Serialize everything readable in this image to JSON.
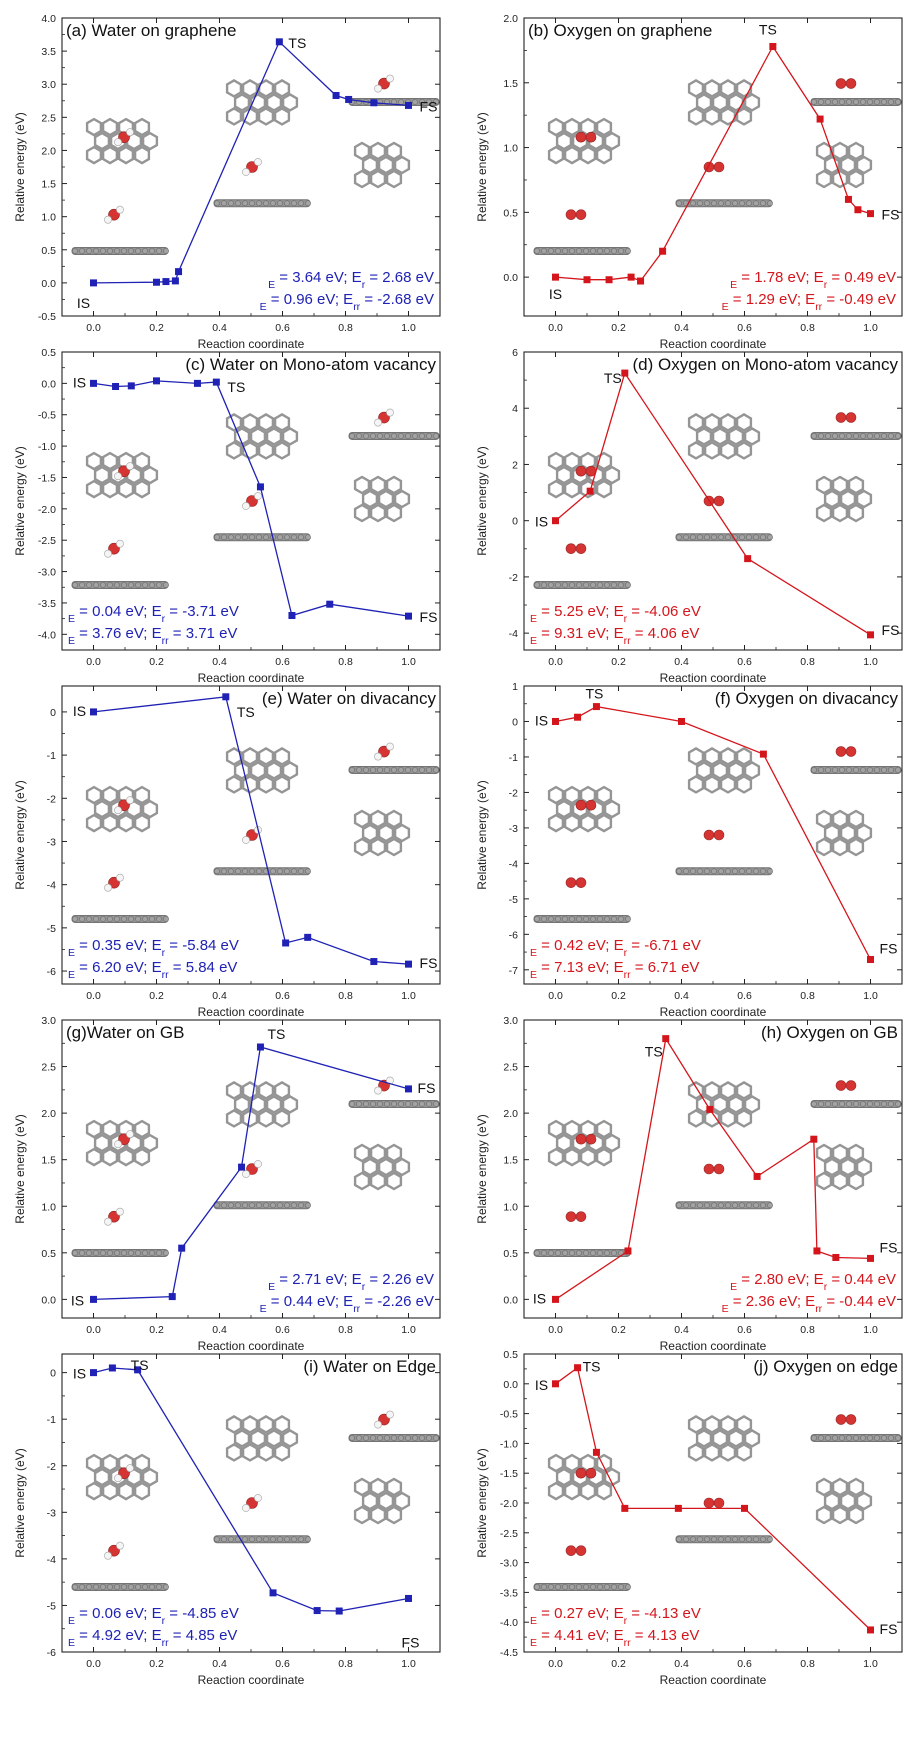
{
  "chart_data": [
    {
      "type": "line",
      "panel_label": "(a) Water on graphene",
      "color": "#1f22b4",
      "xlabel": "Reaction coordinate",
      "ylabel": "Relative energy (eV)",
      "xlim": [
        -0.1,
        1.1
      ],
      "ylim": [
        -0.5,
        4.0
      ],
      "yticks": [
        -0.5,
        0.0,
        0.5,
        1.0,
        1.5,
        2.0,
        2.5,
        3.0,
        3.5,
        4.0
      ],
      "ytick_labels": [
        "-0.5",
        "0.0",
        "0.5",
        "1.0",
        "1.5",
        "2.0",
        "2.5",
        "3.0",
        "3.5",
        "4.0"
      ],
      "x": [
        0.0,
        0.2,
        0.23,
        0.26,
        0.27,
        0.59,
        0.77,
        0.81,
        0.89,
        1.0
      ],
      "y": [
        0.0,
        0.01,
        0.02,
        0.03,
        0.17,
        3.64,
        2.83,
        2.77,
        2.72,
        2.68
      ],
      "labels": [
        {
          "text": "IS",
          "x": 0.0,
          "y": 0.0,
          "dx": -10,
          "dy": 25
        },
        {
          "text": "TS",
          "x": 0.59,
          "y": 3.64,
          "dx": 18,
          "dy": 6
        },
        {
          "text": "FS",
          "x": 1.0,
          "y": 2.68,
          "dx": 20,
          "dy": 6
        }
      ],
      "energy_lines": [
        [
          {
            "t": "E",
            "s": "bar"
          },
          {
            "t": " = 3.64 eV; E"
          },
          {
            "t": "r",
            "s": "r"
          },
          {
            "t": "  = 2.68 eV"
          }
        ],
        [
          {
            "t": "E",
            "s": "rbar"
          },
          {
            "t": " = 0.96 eV; E"
          },
          {
            "t": "rr",
            "s": "rr"
          },
          {
            "t": " = -2.68 eV"
          }
        ]
      ]
    },
    {
      "type": "line",
      "panel_label": "(b) Oxygen on graphene",
      "color": "#d4161c",
      "xlabel": "Reaction coordinate",
      "ylabel": "Relative energy (eV)",
      "xlim": [
        -0.1,
        1.1
      ],
      "ylim": [
        -0.3,
        2.0
      ],
      "yticks": [
        0.0,
        0.5,
        1.0,
        1.5,
        2.0
      ],
      "ytick_labels": [
        "0.0",
        "0.5",
        "1.0",
        "1.5",
        "2.0"
      ],
      "x": [
        0.0,
        0.1,
        0.17,
        0.24,
        0.27,
        0.34,
        0.69,
        0.84,
        0.93,
        0.96,
        1.0
      ],
      "y": [
        0.0,
        -0.02,
        -0.02,
        0.0,
        -0.03,
        0.2,
        1.78,
        1.22,
        0.6,
        0.52,
        0.49
      ],
      "labels": [
        {
          "text": "IS",
          "x": 0.0,
          "y": 0.0,
          "dx": 0,
          "dy": 22
        },
        {
          "text": "TS",
          "x": 0.69,
          "y": 1.78,
          "dx": -5,
          "dy": -12
        },
        {
          "text": "FS",
          "x": 1.0,
          "y": 0.49,
          "dx": 20,
          "dy": 6
        }
      ],
      "energy_lines": [
        [
          {
            "t": "E",
            "s": "bar"
          },
          {
            "t": " = 1.78 eV; E"
          },
          {
            "t": "r",
            "s": "r"
          },
          {
            "t": "  = 0.49 eV"
          }
        ],
        [
          {
            "t": "E",
            "s": "rbar"
          },
          {
            "t": " = 1.29 eV; E"
          },
          {
            "t": "rr",
            "s": "rr"
          },
          {
            "t": " = -0.49 eV"
          }
        ]
      ]
    },
    {
      "type": "line",
      "panel_label": "(c) Water on Mono-atom vacancy",
      "color": "#1f22b4",
      "xlabel": "Reaction coordinate",
      "ylabel": "Relative energy (eV)",
      "xlim": [
        -0.1,
        1.1
      ],
      "ylim": [
        -4.25,
        0.5
      ],
      "yticks": [
        -4.0,
        -3.5,
        -3.0,
        -2.5,
        -2.0,
        -1.5,
        -1.0,
        -0.5,
        0.0,
        0.5
      ],
      "ytick_labels": [
        "-4.0",
        "-3.5",
        "-3.0",
        "-2.5",
        "-2.0",
        "-1.5",
        "-1.0",
        "-0.5",
        "0.0",
        "0.5"
      ],
      "x": [
        0.0,
        0.07,
        0.12,
        0.2,
        0.33,
        0.39,
        0.53,
        0.63,
        0.75,
        1.0
      ],
      "y": [
        0.0,
        -0.05,
        -0.04,
        0.04,
        0.0,
        0.02,
        -1.65,
        -3.7,
        -3.52,
        -3.71
      ],
      "labels": [
        {
          "text": "IS",
          "x": 0.0,
          "y": 0.0,
          "dx": -14,
          "dy": 4
        },
        {
          "text": "TS",
          "x": 0.39,
          "y": 0.02,
          "dx": 20,
          "dy": 10
        },
        {
          "text": "FS",
          "x": 1.0,
          "y": -3.71,
          "dx": 20,
          "dy": 6
        }
      ],
      "energy_lines": [
        [
          {
            "t": "E",
            "s": "bar"
          },
          {
            "t": " = 0.04 eV; E"
          },
          {
            "t": "r",
            "s": "r"
          },
          {
            "t": " = -3.71 eV"
          }
        ],
        [
          {
            "t": "E",
            "s": "rbar"
          },
          {
            "t": " = 3.76 eV; E"
          },
          {
            "t": "rr",
            "s": "rr"
          },
          {
            "t": " = 3.71 eV"
          }
        ]
      ]
    },
    {
      "type": "line",
      "panel_label": "(d) Oxygen on Mono-atom vacancy",
      "color": "#d4161c",
      "xlabel": "Reaction coordinate",
      "ylabel": "Relative energy (eV)",
      "xlim": [
        -0.1,
        1.1
      ],
      "ylim": [
        -4.6,
        6.0
      ],
      "yticks": [
        -4,
        -2,
        0,
        2,
        4,
        6
      ],
      "ytick_labels": [
        "-4",
        "-2",
        "0",
        "2",
        "4",
        "6"
      ],
      "x": [
        0.0,
        0.11,
        0.22,
        0.61,
        1.0
      ],
      "y": [
        0.0,
        1.05,
        5.25,
        -1.35,
        -4.06
      ],
      "labels": [
        {
          "text": "IS",
          "x": 0.0,
          "y": 0.0,
          "dx": -14,
          "dy": 6
        },
        {
          "text": "TS",
          "x": 0.22,
          "y": 5.25,
          "dx": -12,
          "dy": 10
        },
        {
          "text": "FS",
          "x": 1.0,
          "y": -4.06,
          "dx": 20,
          "dy": 0
        }
      ],
      "energy_lines": [
        [
          {
            "t": "E",
            "s": "bar"
          },
          {
            "t": " = 5.25 eV; E"
          },
          {
            "t": "r",
            "s": "r"
          },
          {
            "t": " = -4.06 eV"
          }
        ],
        [
          {
            "t": "E",
            "s": "rbar"
          },
          {
            "t": " = 9.31 eV; E"
          },
          {
            "t": "rr",
            "s": "rr"
          },
          {
            "t": " = 4.06 eV"
          }
        ]
      ]
    },
    {
      "type": "line",
      "panel_label": "(e) Water on divacancy",
      "color": "#1f22b4",
      "xlabel": "Reaction coordinate",
      "ylabel": "Relative energy (eV)",
      "xlim": [
        -0.1,
        1.1
      ],
      "ylim": [
        -6.3,
        0.6
      ],
      "yticks": [
        -6,
        -5,
        -4,
        -3,
        -2,
        -1,
        0
      ],
      "ytick_labels": [
        "-6",
        "-5",
        "-4",
        "-3",
        "-2",
        "-1",
        "0"
      ],
      "x": [
        0.0,
        0.42,
        0.61,
        0.68,
        0.89,
        1.0
      ],
      "y": [
        0.0,
        0.35,
        -5.35,
        -5.22,
        -5.78,
        -5.84
      ],
      "labels": [
        {
          "text": "IS",
          "x": 0.0,
          "y": 0.0,
          "dx": -14,
          "dy": 4
        },
        {
          "text": "TS",
          "x": 0.42,
          "y": 0.35,
          "dx": 20,
          "dy": 20
        },
        {
          "text": "FS",
          "x": 1.0,
          "y": -5.84,
          "dx": 20,
          "dy": 4
        }
      ],
      "energy_lines": [
        [
          {
            "t": "E",
            "s": "bar"
          },
          {
            "t": " = 0.35 eV; E"
          },
          {
            "t": "r",
            "s": "r"
          },
          {
            "t": " = -5.84 eV"
          }
        ],
        [
          {
            "t": "E",
            "s": "rbar"
          },
          {
            "t": " = 6.20 eV; E"
          },
          {
            "t": "rr",
            "s": "rr"
          },
          {
            "t": " = 5.84 eV"
          }
        ]
      ]
    },
    {
      "type": "line",
      "panel_label": "(f) Oxygen on divacancy",
      "color": "#d4161c",
      "xlabel": "Reaction coordinate",
      "ylabel": "Relative energy (eV)",
      "xlim": [
        -0.1,
        1.1
      ],
      "ylim": [
        -7.4,
        1.0
      ],
      "yticks": [
        -7,
        -6,
        -5,
        -4,
        -3,
        -2,
        -1,
        0,
        1
      ],
      "ytick_labels": [
        "-7",
        "-6",
        "-5",
        "-4",
        "-3",
        "-2",
        "-1",
        "0",
        "1"
      ],
      "x": [
        0.0,
        0.07,
        0.13,
        0.4,
        0.66,
        1.0
      ],
      "y": [
        0.0,
        0.12,
        0.42,
        0.0,
        -0.92,
        -6.71
      ],
      "labels": [
        {
          "text": "IS",
          "x": 0.0,
          "y": 0.0,
          "dx": -14,
          "dy": 4
        },
        {
          "text": "TS",
          "x": 0.13,
          "y": 0.42,
          "dx": -2,
          "dy": -8
        },
        {
          "text": "FS",
          "x": 1.0,
          "y": -6.71,
          "dx": 18,
          "dy": -6
        }
      ],
      "energy_lines": [
        [
          {
            "t": "E",
            "s": "bar"
          },
          {
            "t": " = 0.42 eV; E"
          },
          {
            "t": "r",
            "s": "r"
          },
          {
            "t": " = -6.71 eV"
          }
        ],
        [
          {
            "t": "E",
            "s": "rbar"
          },
          {
            "t": " = 7.13 eV; E"
          },
          {
            "t": "rr",
            "s": "rr"
          },
          {
            "t": " = 6.71 eV"
          }
        ]
      ]
    },
    {
      "type": "line",
      "panel_label": "(g)Water on GB",
      "color": "#1f22b4",
      "xlabel": "Reaction coordinate",
      "ylabel": "Relative energy (eV)",
      "xlim": [
        -0.1,
        1.1
      ],
      "ylim": [
        -0.2,
        3.0
      ],
      "yticks": [
        0.0,
        0.5,
        1.0,
        1.5,
        2.0,
        2.5,
        3.0
      ],
      "ytick_labels": [
        "0.0",
        "0.5",
        "1.0",
        "1.5",
        "2.0",
        "2.5",
        "3.0"
      ],
      "x": [
        0.0,
        0.25,
        0.28,
        0.47,
        0.53,
        1.0
      ],
      "y": [
        0.0,
        0.03,
        0.55,
        1.42,
        2.71,
        2.26
      ],
      "labels": [
        {
          "text": "IS",
          "x": 0.0,
          "y": 0.0,
          "dx": -16,
          "dy": 6
        },
        {
          "text": "TS",
          "x": 0.53,
          "y": 2.71,
          "dx": 16,
          "dy": -8
        },
        {
          "text": "FS",
          "x": 1.0,
          "y": 2.26,
          "dx": 18,
          "dy": 4
        }
      ],
      "energy_lines": [
        [
          {
            "t": "E",
            "s": "bar"
          },
          {
            "t": " = 2.71 eV; E"
          },
          {
            "t": "r",
            "s": "r"
          },
          {
            "t": " = 2.26 eV"
          }
        ],
        [
          {
            "t": "E",
            "s": "rbar"
          },
          {
            "t": " = 0.44 eV; E"
          },
          {
            "t": "rr",
            "s": "rr"
          },
          {
            "t": " = -2.26 eV"
          }
        ]
      ]
    },
    {
      "type": "line",
      "panel_label": "(h)  Oxygen on GB",
      "color": "#d4161c",
      "xlabel": "Reaction coordinate",
      "ylabel": "Relative energy (eV)",
      "xlim": [
        -0.1,
        1.1
      ],
      "ylim": [
        -0.2,
        3.0
      ],
      "yticks": [
        0.0,
        0.5,
        1.0,
        1.5,
        2.0,
        2.5,
        3.0
      ],
      "ytick_labels": [
        "0.0",
        "0.5",
        "1.0",
        "1.5",
        "2.0",
        "2.5",
        "3.0"
      ],
      "x": [
        0.0,
        0.23,
        0.35,
        0.49,
        0.64,
        0.82,
        0.83,
        0.89,
        1.0
      ],
      "y": [
        0.0,
        0.52,
        2.8,
        2.04,
        1.32,
        1.72,
        0.52,
        0.45,
        0.44
      ],
      "labels": [
        {
          "text": "IS",
          "x": 0.0,
          "y": 0.0,
          "dx": -16,
          "dy": 4
        },
        {
          "text": "TS",
          "x": 0.35,
          "y": 2.8,
          "dx": -12,
          "dy": 18
        },
        {
          "text": "FS",
          "x": 1.0,
          "y": 0.44,
          "dx": 18,
          "dy": -6
        }
      ],
      "energy_lines": [
        [
          {
            "t": "E",
            "s": "bar"
          },
          {
            "t": " = 2.80 eV; E"
          },
          {
            "t": "r",
            "s": "r"
          },
          {
            "t": " = 0.44 eV"
          }
        ],
        [
          {
            "t": "E",
            "s": "rbar"
          },
          {
            "t": " = 2.36 eV; E"
          },
          {
            "t": "rr",
            "s": "rr"
          },
          {
            "t": " = -0.44 eV"
          }
        ]
      ]
    },
    {
      "type": "line",
      "panel_label": "(i) Water on Edge",
      "color": "#1f22b4",
      "xlabel": "Reaction coordinate",
      "ylabel": "Relative energy (eV)",
      "xlim": [
        -0.1,
        1.1
      ],
      "ylim": [
        -6.0,
        0.4
      ],
      "yticks": [
        -6,
        -5,
        -4,
        -3,
        -2,
        -1,
        0
      ],
      "ytick_labels": [
        "-6",
        "-5",
        "-4",
        "-3",
        "-2",
        "-1",
        "0"
      ],
      "x": [
        0.0,
        0.06,
        0.14,
        0.57,
        0.71,
        0.78,
        1.0
      ],
      "y": [
        0.0,
        0.1,
        0.06,
        -4.73,
        -5.11,
        -5.12,
        -4.85
      ],
      "labels": [
        {
          "text": "IS",
          "x": 0.0,
          "y": 0.0,
          "dx": -14,
          "dy": 6
        },
        {
          "text": "TS",
          "x": 0.14,
          "y": 0.06,
          "dx": 2,
          "dy": 0
        },
        {
          "text": "FS",
          "x": 1.0,
          "y": -5.6,
          "dx": 2,
          "dy": 14
        }
      ],
      "energy_lines": [
        [
          {
            "t": "E",
            "s": "bar"
          },
          {
            "t": " = 0.06 eV; E"
          },
          {
            "t": "r",
            "s": "r"
          },
          {
            "t": " = -4.85 eV"
          }
        ],
        [
          {
            "t": "E",
            "s": "rbar"
          },
          {
            "t": " = 4.92 eV; E"
          },
          {
            "t": "rr",
            "s": "rr"
          },
          {
            "t": " = 4.85 eV"
          }
        ]
      ]
    },
    {
      "type": "line",
      "panel_label": "(j)  Oxygen on edge",
      "color": "#d4161c",
      "xlabel": "Reaction coordinate",
      "ylabel": "Relative energy (eV)",
      "xlim": [
        -0.1,
        1.1
      ],
      "ylim": [
        -4.5,
        0.5
      ],
      "yticks": [
        -4.5,
        -4.0,
        -3.5,
        -3.0,
        -2.5,
        -2.0,
        -1.5,
        -1.0,
        -0.5,
        0.0,
        0.5
      ],
      "ytick_labels": [
        "-4.5",
        "-4.0",
        "-3.5",
        "-3.0",
        "-2.5",
        "-2.0",
        "-1.5",
        "-1.0",
        "-0.5",
        "0.0",
        "0.5"
      ],
      "x": [
        0.0,
        0.07,
        0.13,
        0.22,
        0.39,
        0.6,
        1.0
      ],
      "y": [
        0.0,
        0.27,
        -1.15,
        -2.09,
        -2.09,
        -2.09,
        -4.13
      ],
      "labels": [
        {
          "text": "IS",
          "x": 0.0,
          "y": 0.0,
          "dx": -14,
          "dy": 6
        },
        {
          "text": "TS",
          "x": 0.07,
          "y": 0.27,
          "dx": 14,
          "dy": 4
        },
        {
          "text": "FS",
          "x": 1.0,
          "y": -4.13,
          "dx": 18,
          "dy": 4
        }
      ],
      "energy_lines": [
        [
          {
            "t": "E",
            "s": "bar"
          },
          {
            "t": " = 0.27 eV; E"
          },
          {
            "t": "r",
            "s": "r"
          },
          {
            "t": " = -4.13 eV"
          }
        ],
        [
          {
            "t": "E",
            "s": "rbar"
          },
          {
            "t": " = 4.41 eV; E"
          },
          {
            "t": "rr",
            "s": "rr"
          },
          {
            "t": " = 4.13 eV"
          }
        ]
      ]
    }
  ],
  "xticks": [
    0.0,
    0.2,
    0.4,
    0.6,
    0.8,
    1.0
  ],
  "xtick_labels": [
    "0.0",
    "0.2",
    "0.4",
    "0.6",
    "0.8",
    "1.0"
  ]
}
